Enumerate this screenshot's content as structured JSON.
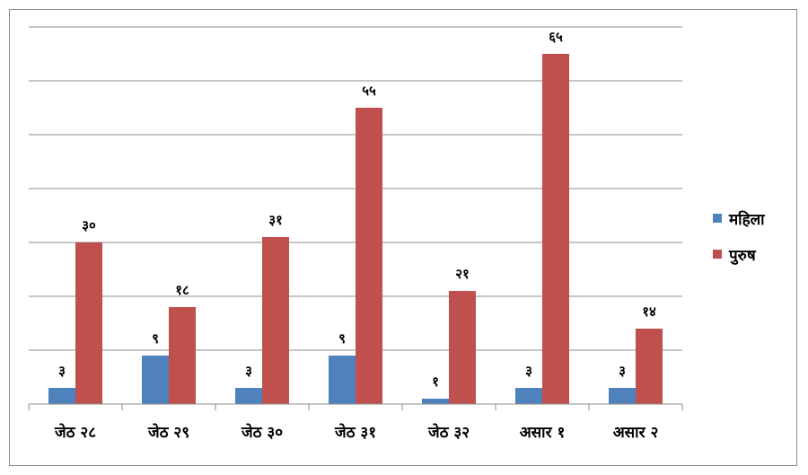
{
  "chart_data": {
    "type": "bar",
    "categories": [
      "जेठ २८",
      "जेठ २९",
      "जेठ ३०",
      "जेठ ३१",
      "जेठ ३२",
      "असार १",
      "असार २"
    ],
    "series": [
      {
        "name": "महिला",
        "color": "#4F81BD",
        "values": [
          3,
          9,
          3,
          9,
          1,
          3,
          3
        ],
        "labels": [
          "३",
          "९",
          "३",
          "९",
          "१",
          "३",
          "३"
        ]
      },
      {
        "name": "पुरुष",
        "color": "#C0504D",
        "values": [
          30,
          18,
          31,
          55,
          21,
          65,
          14
        ],
        "labels": [
          "३०",
          "१८",
          "३१",
          "५५",
          "२१",
          "६५",
          "१४"
        ]
      }
    ],
    "ylim": [
      0,
      70
    ],
    "ytick_step": 10,
    "grid": true,
    "legend_position": "right"
  }
}
